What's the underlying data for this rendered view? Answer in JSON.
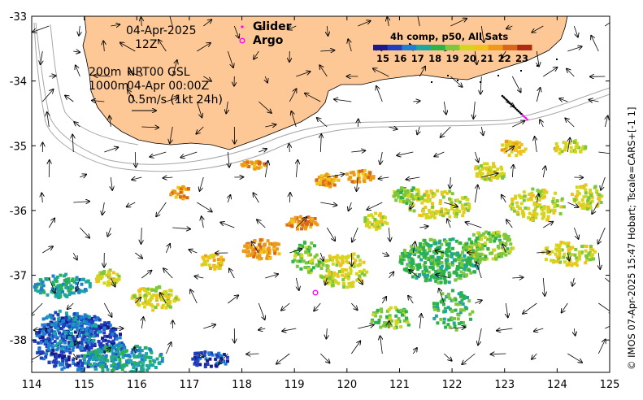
{
  "map": {
    "date": "04-Apr-2025",
    "time": "12Z",
    "depth_line1": "200m",
    "depth_line2": "1000m",
    "product": "NRT00 GSL",
    "product_time": "04-Apr 00:00Z",
    "scale_label": "0.5m/s (1kt 24h)",
    "legend_glider": "Glider",
    "legend_argo": "Argo",
    "colorbar_title": "4h comp, p50, All Sats",
    "colorbar_ticks": [
      "15",
      "16",
      "17",
      "18",
      "19",
      "20",
      "21",
      "22",
      "23"
    ],
    "credit": "© IMOS 07-Apr-2025 15:47 Hobart; Tscale=CARS+[-1 1]",
    "x_ticks": [
      "114",
      "115",
      "116",
      "117",
      "118",
      "119",
      "120",
      "121",
      "122",
      "123",
      "124",
      "125"
    ],
    "y_ticks": [
      "-33",
      "-34",
      "-35",
      "-36",
      "-37",
      "-38"
    ],
    "lon_range": [
      114,
      125
    ],
    "lat_range": [
      -38.5,
      -33
    ],
    "colors": {
      "land": "#fdc896",
      "glider": "#ff00ff",
      "argo": "#ff00ff",
      "colormap": [
        "#1a1a8c",
        "#1f3fbf",
        "#1f7fd0",
        "#1fa6a0",
        "#2bb24a",
        "#7cc83a",
        "#d4d61e",
        "#f2c21a",
        "#ee9a16",
        "#d9661a",
        "#b02a10"
      ]
    }
  }
}
